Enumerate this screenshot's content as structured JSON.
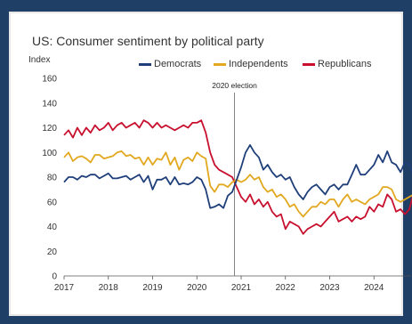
{
  "chart_data": {
    "type": "line",
    "title": "US: Consumer sentiment by political party",
    "ylabel": "Index",
    "xlabel": "",
    "ylim": [
      0,
      160
    ],
    "yticks": [
      0,
      20,
      40,
      60,
      80,
      100,
      120,
      140,
      160
    ],
    "xlim": [
      2017,
      2025
    ],
    "xticks": [
      "2017",
      "2018",
      "2019",
      "2020",
      "2021",
      "2022",
      "2023",
      "2024"
    ],
    "grid": "horizontal",
    "legend": "top",
    "annotation": {
      "label": "2020 election",
      "x": 2020.85
    },
    "series": [
      {
        "name": "Democrats",
        "color": "#1f3f7a",
        "points": [
          [
            2017.0,
            76
          ],
          [
            2017.1,
            80
          ],
          [
            2017.2,
            80
          ],
          [
            2017.3,
            78
          ],
          [
            2017.4,
            81
          ],
          [
            2017.5,
            80
          ],
          [
            2017.6,
            82
          ],
          [
            2017.7,
            82
          ],
          [
            2017.8,
            79
          ],
          [
            2017.9,
            81
          ],
          [
            2018.0,
            83
          ],
          [
            2018.1,
            79
          ],
          [
            2018.2,
            79
          ],
          [
            2018.3,
            80
          ],
          [
            2018.4,
            81
          ],
          [
            2018.5,
            78
          ],
          [
            2018.6,
            80
          ],
          [
            2018.7,
            82
          ],
          [
            2018.8,
            76
          ],
          [
            2018.9,
            81
          ],
          [
            2019.0,
            70
          ],
          [
            2019.1,
            78
          ],
          [
            2019.2,
            78
          ],
          [
            2019.3,
            80
          ],
          [
            2019.4,
            74
          ],
          [
            2019.5,
            80
          ],
          [
            2019.6,
            74
          ],
          [
            2019.7,
            75
          ],
          [
            2019.8,
            74
          ],
          [
            2019.9,
            76
          ],
          [
            2020.0,
            80
          ],
          [
            2020.1,
            78
          ],
          [
            2020.2,
            70
          ],
          [
            2020.3,
            55
          ],
          [
            2020.4,
            56
          ],
          [
            2020.5,
            58
          ],
          [
            2020.6,
            55
          ],
          [
            2020.7,
            65
          ],
          [
            2020.8,
            68
          ],
          [
            2020.9,
            78
          ],
          [
            2021.0,
            88
          ],
          [
            2021.1,
            100
          ],
          [
            2021.2,
            106
          ],
          [
            2021.3,
            100
          ],
          [
            2021.4,
            96
          ],
          [
            2021.5,
            86
          ],
          [
            2021.6,
            90
          ],
          [
            2021.7,
            84
          ],
          [
            2021.8,
            80
          ],
          [
            2021.9,
            82
          ],
          [
            2022.0,
            78
          ],
          [
            2022.1,
            80
          ],
          [
            2022.2,
            72
          ],
          [
            2022.3,
            66
          ],
          [
            2022.4,
            62
          ],
          [
            2022.5,
            68
          ],
          [
            2022.6,
            72
          ],
          [
            2022.7,
            74
          ],
          [
            2022.8,
            70
          ],
          [
            2022.9,
            66
          ],
          [
            2023.0,
            72
          ],
          [
            2023.1,
            74
          ],
          [
            2023.2,
            70
          ],
          [
            2023.3,
            74
          ],
          [
            2023.4,
            74
          ],
          [
            2023.5,
            82
          ],
          [
            2023.6,
            90
          ],
          [
            2023.7,
            82
          ],
          [
            2023.8,
            82
          ],
          [
            2023.9,
            86
          ],
          [
            2024.0,
            90
          ],
          [
            2024.1,
            98
          ],
          [
            2024.2,
            92
          ],
          [
            2024.3,
            101
          ],
          [
            2024.4,
            92
          ],
          [
            2024.5,
            90
          ],
          [
            2024.6,
            84
          ],
          [
            2024.7,
            92
          ],
          [
            2024.8,
            90
          ],
          [
            2024.9,
            80
          ]
        ]
      },
      {
        "name": "Independents",
        "color": "#e2a820",
        "points": [
          [
            2017.0,
            96
          ],
          [
            2017.1,
            100
          ],
          [
            2017.2,
            93
          ],
          [
            2017.3,
            96
          ],
          [
            2017.4,
            97
          ],
          [
            2017.5,
            95
          ],
          [
            2017.6,
            92
          ],
          [
            2017.7,
            98
          ],
          [
            2017.8,
            98
          ],
          [
            2017.9,
            95
          ],
          [
            2018.0,
            96
          ],
          [
            2018.1,
            97
          ],
          [
            2018.2,
            100
          ],
          [
            2018.3,
            101
          ],
          [
            2018.4,
            97
          ],
          [
            2018.5,
            98
          ],
          [
            2018.6,
            95
          ],
          [
            2018.7,
            96
          ],
          [
            2018.8,
            90
          ],
          [
            2018.9,
            96
          ],
          [
            2019.0,
            90
          ],
          [
            2019.1,
            95
          ],
          [
            2019.2,
            94
          ],
          [
            2019.3,
            100
          ],
          [
            2019.4,
            90
          ],
          [
            2019.5,
            96
          ],
          [
            2019.6,
            86
          ],
          [
            2019.7,
            94
          ],
          [
            2019.8,
            96
          ],
          [
            2019.9,
            93
          ],
          [
            2020.0,
            100
          ],
          [
            2020.1,
            97
          ],
          [
            2020.2,
            95
          ],
          [
            2020.3,
            73
          ],
          [
            2020.4,
            68
          ],
          [
            2020.5,
            74
          ],
          [
            2020.6,
            74
          ],
          [
            2020.7,
            72
          ],
          [
            2020.8,
            76
          ],
          [
            2020.9,
            78
          ],
          [
            2021.0,
            76
          ],
          [
            2021.1,
            78
          ],
          [
            2021.2,
            82
          ],
          [
            2021.3,
            78
          ],
          [
            2021.4,
            80
          ],
          [
            2021.5,
            72
          ],
          [
            2021.6,
            68
          ],
          [
            2021.7,
            70
          ],
          [
            2021.8,
            64
          ],
          [
            2021.9,
            66
          ],
          [
            2022.0,
            62
          ],
          [
            2022.1,
            56
          ],
          [
            2022.2,
            58
          ],
          [
            2022.3,
            52
          ],
          [
            2022.4,
            48
          ],
          [
            2022.5,
            52
          ],
          [
            2022.6,
            56
          ],
          [
            2022.7,
            56
          ],
          [
            2022.8,
            60
          ],
          [
            2022.9,
            58
          ],
          [
            2023.0,
            62
          ],
          [
            2023.1,
            62
          ],
          [
            2023.2,
            56
          ],
          [
            2023.3,
            62
          ],
          [
            2023.4,
            66
          ],
          [
            2023.5,
            60
          ],
          [
            2023.6,
            62
          ],
          [
            2023.7,
            60
          ],
          [
            2023.8,
            58
          ],
          [
            2023.9,
            62
          ],
          [
            2024.0,
            64
          ],
          [
            2024.1,
            66
          ],
          [
            2024.2,
            72
          ],
          [
            2024.3,
            72
          ],
          [
            2024.4,
            70
          ],
          [
            2024.5,
            62
          ],
          [
            2024.6,
            60
          ],
          [
            2024.7,
            62
          ],
          [
            2024.8,
            64
          ],
          [
            2024.9,
            66
          ]
        ]
      },
      {
        "name": "Republicans",
        "color": "#c8102e",
        "points": [
          [
            2017.0,
            114
          ],
          [
            2017.1,
            118
          ],
          [
            2017.2,
            112
          ],
          [
            2017.3,
            120
          ],
          [
            2017.4,
            114
          ],
          [
            2017.5,
            120
          ],
          [
            2017.6,
            116
          ],
          [
            2017.7,
            122
          ],
          [
            2017.8,
            118
          ],
          [
            2017.9,
            120
          ],
          [
            2018.0,
            124
          ],
          [
            2018.1,
            118
          ],
          [
            2018.2,
            122
          ],
          [
            2018.3,
            124
          ],
          [
            2018.4,
            120
          ],
          [
            2018.5,
            122
          ],
          [
            2018.6,
            124
          ],
          [
            2018.7,
            120
          ],
          [
            2018.8,
            126
          ],
          [
            2018.9,
            124
          ],
          [
            2019.0,
            120
          ],
          [
            2019.1,
            124
          ],
          [
            2019.2,
            120
          ],
          [
            2019.3,
            122
          ],
          [
            2019.4,
            120
          ],
          [
            2019.5,
            118
          ],
          [
            2019.6,
            120
          ],
          [
            2019.7,
            122
          ],
          [
            2019.8,
            120
          ],
          [
            2019.9,
            124
          ],
          [
            2020.0,
            124
          ],
          [
            2020.1,
            126
          ],
          [
            2020.2,
            116
          ],
          [
            2020.3,
            100
          ],
          [
            2020.4,
            90
          ],
          [
            2020.5,
            86
          ],
          [
            2020.6,
            84
          ],
          [
            2020.7,
            82
          ],
          [
            2020.8,
            80
          ],
          [
            2020.9,
            72
          ],
          [
            2021.0,
            64
          ],
          [
            2021.1,
            60
          ],
          [
            2021.2,
            66
          ],
          [
            2021.3,
            58
          ],
          [
            2021.4,
            62
          ],
          [
            2021.5,
            56
          ],
          [
            2021.6,
            60
          ],
          [
            2021.7,
            52
          ],
          [
            2021.8,
            48
          ],
          [
            2021.9,
            50
          ],
          [
            2022.0,
            38
          ],
          [
            2022.1,
            44
          ],
          [
            2022.2,
            42
          ],
          [
            2022.3,
            40
          ],
          [
            2022.4,
            34
          ],
          [
            2022.5,
            38
          ],
          [
            2022.6,
            40
          ],
          [
            2022.7,
            42
          ],
          [
            2022.8,
            40
          ],
          [
            2022.9,
            44
          ],
          [
            2023.0,
            48
          ],
          [
            2023.1,
            52
          ],
          [
            2023.2,
            44
          ],
          [
            2023.3,
            46
          ],
          [
            2023.4,
            48
          ],
          [
            2023.5,
            44
          ],
          [
            2023.6,
            48
          ],
          [
            2023.7,
            46
          ],
          [
            2023.8,
            48
          ],
          [
            2023.9,
            56
          ],
          [
            2024.0,
            52
          ],
          [
            2024.1,
            58
          ],
          [
            2024.2,
            56
          ],
          [
            2024.3,
            66
          ],
          [
            2024.4,
            62
          ],
          [
            2024.5,
            52
          ],
          [
            2024.6,
            54
          ],
          [
            2024.7,
            50
          ],
          [
            2024.8,
            54
          ],
          [
            2024.9,
            68
          ]
        ]
      }
    ]
  }
}
